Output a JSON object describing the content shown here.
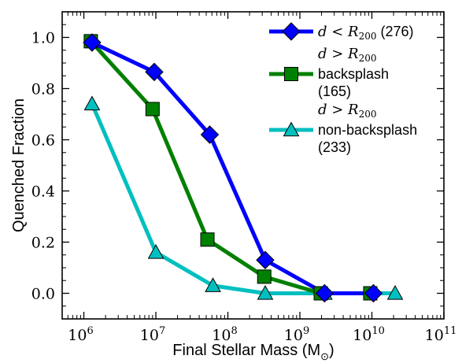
{
  "chart_data": {
    "type": "line",
    "xlabel": "Final Stellar Mass (M",
    "xlabel_sub": "⊙",
    "xlabel_close": ")",
    "ylabel": "Quenched Fraction",
    "xscale": "log",
    "xlim": [
      500000,
      100000000000
    ],
    "ylim": [
      -0.1,
      1.1
    ],
    "x_ticks": [
      {
        "value": 1000000,
        "base": "10",
        "exp": "6"
      },
      {
        "value": 10000000,
        "base": "10",
        "exp": "7"
      },
      {
        "value": 100000000,
        "base": "10",
        "exp": "8"
      },
      {
        "value": 1000000000,
        "base": "10",
        "exp": "9"
      },
      {
        "value": 10000000000,
        "base": "10",
        "exp": "10"
      },
      {
        "value": 100000000000,
        "base": "10",
        "exp": "11"
      }
    ],
    "y_ticks": [
      {
        "value": 0.0,
        "label": "0.0"
      },
      {
        "value": 0.2,
        "label": "0.2"
      },
      {
        "value": 0.4,
        "label": "0.4"
      },
      {
        "value": 0.6,
        "label": "0.6"
      },
      {
        "value": 0.8,
        "label": "0.8"
      },
      {
        "value": 1.0,
        "label": "1.0"
      }
    ],
    "grid": false,
    "legend_position": "top-right",
    "series": [
      {
        "color": "#0000ff",
        "marker": "diamond",
        "legend": {
          "math_pre": "d < R",
          "math_sub": "200",
          "text_lines": [
            " (276)"
          ]
        },
        "x": [
          1300000,
          9500000,
          56000000,
          330000000,
          2200000000,
          10500000000
        ],
        "y": [
          0.98,
          0.865,
          0.62,
          0.13,
          0.0,
          0.0
        ]
      },
      {
        "color": "#008000",
        "marker": "square",
        "legend": {
          "math_pre": "d > R",
          "math_sub": "200",
          "text_lines": [
            "backsplash",
            "(165)"
          ]
        },
        "x": [
          1250000,
          9000000,
          52000000,
          320000000,
          1950000000,
          9500000000
        ],
        "y": [
          0.985,
          0.72,
          0.21,
          0.065,
          0.0,
          0.0
        ]
      },
      {
        "color": "#00bfbf",
        "marker": "triangle",
        "legend": {
          "math_pre": "d > R",
          "math_sub": "200",
          "text_lines": [
            "non-backsplash",
            "(233)"
          ]
        },
        "x": [
          1300000,
          10000000,
          62000000,
          330000000,
          2200000000,
          21000000000
        ],
        "y": [
          0.74,
          0.16,
          0.03,
          0.0,
          0.0,
          0.0
        ]
      }
    ]
  }
}
